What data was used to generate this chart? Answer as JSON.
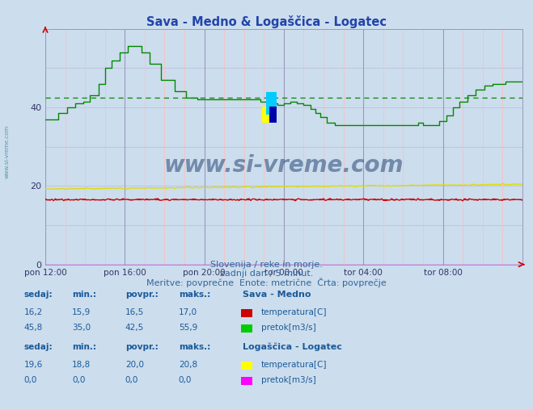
{
  "title": "Sava - Medno & Logaščica - Logatec",
  "bg_color": "#ccdded",
  "plot_bg_color": "#ccdded",
  "xlim": [
    0,
    288
  ],
  "ylim": [
    0,
    60
  ],
  "yticks": [
    0,
    20,
    40
  ],
  "xtick_labels": [
    "pon 12:00",
    "pon 16:00",
    "pon 20:00",
    "tor 00:00",
    "tor 04:00",
    "tor 08:00"
  ],
  "xtick_positions": [
    0,
    48,
    96,
    144,
    192,
    240
  ],
  "avg_line_green": 42.5,
  "avg_line_red": 16.5,
  "sava_temp_color": "#cc0000",
  "sava_pretok_color": "#008800",
  "log_temp_color": "#dddd00",
  "log_pretok_color": "#ff00ff",
  "watermark_text": "www.si-vreme.com",
  "watermark_color": "#1a3a6a",
  "subtitle1": "Slovenija / reke in morje.",
  "subtitle2": "zadnji dan / 5 minut.",
  "subtitle3": "Meritve: povprečne  Enote: metrične  Črta: povprečje",
  "table_color": "#1a5a9a",
  "sava_label": "Sava - Medno",
  "log_label": "Logaščica - Logatec",
  "temp_label": "temperatura[C]",
  "pretok_label": "pretok[m3/s]",
  "sava_sedaj_temp": 16.2,
  "sava_min_temp": 15.9,
  "sava_povpr_temp": 16.5,
  "sava_maks_temp": 17.0,
  "sava_sedaj_pretok": 45.8,
  "sava_min_pretok": 35.0,
  "sava_povpr_pretok": 42.5,
  "sava_maks_pretok": 55.9,
  "log_sedaj_temp": 19.6,
  "log_min_temp": 18.8,
  "log_povpr_temp": 20.0,
  "log_maks_temp": 20.8,
  "log_sedaj_pretok": 0.0,
  "log_min_pretok": 0.0,
  "log_povpr_pretok": 0.0,
  "log_maks_pretok": 0.0,
  "minor_vline_color": "#ffbbbb",
  "minor_hline_color": "#bbbbdd",
  "major_vline_color": "#9999bb",
  "title_color": "#2244aa",
  "subtitle_color": "#336699",
  "left_label_color": "#5599aa"
}
